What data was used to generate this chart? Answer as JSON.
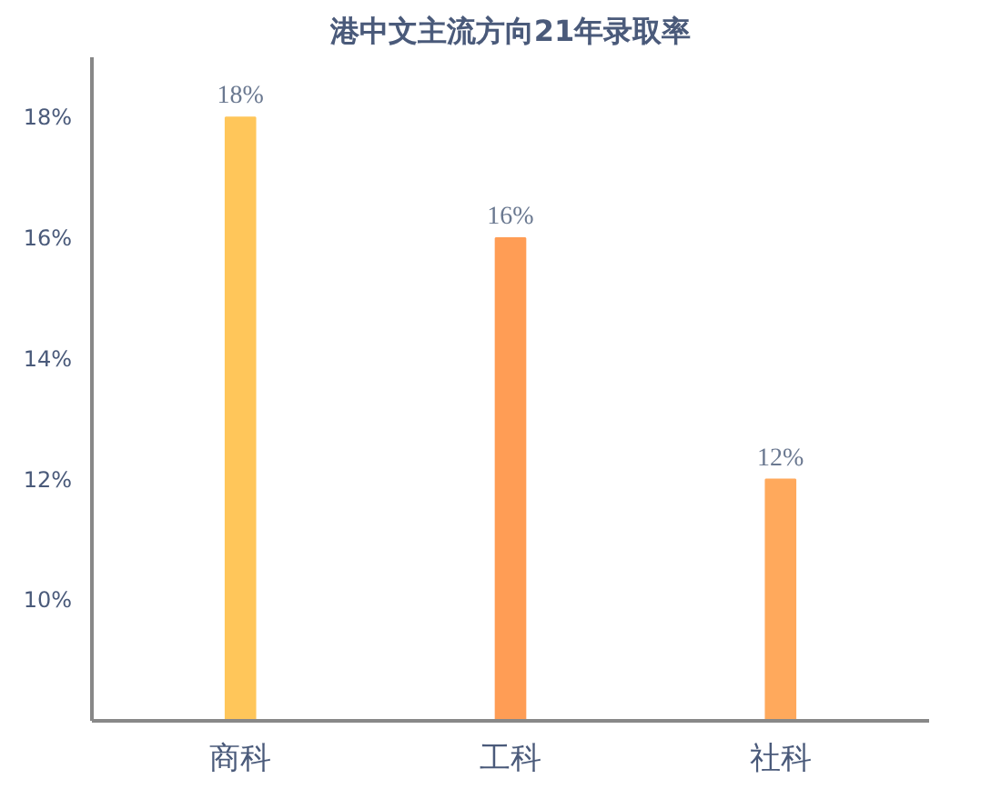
{
  "chart_data": {
    "type": "bar",
    "title": "港中文主流方向21年录取率",
    "categories": [
      "商科",
      "工科",
      "社科"
    ],
    "values": [
      18,
      16,
      12
    ],
    "colors": [
      "#ffc65a",
      "#ff9d55",
      "#ffa95c"
    ],
    "value_labels": [
      "18%",
      "16%",
      "12%"
    ],
    "ylim": [
      8,
      19
    ],
    "yticks": [
      {
        "value": 10,
        "label": "10%"
      },
      {
        "value": 12,
        "label": "12%"
      },
      {
        "value": 14,
        "label": "14%"
      },
      {
        "value": 16,
        "label": "16%"
      },
      {
        "value": 18,
        "label": "18%"
      }
    ],
    "grid": false
  }
}
